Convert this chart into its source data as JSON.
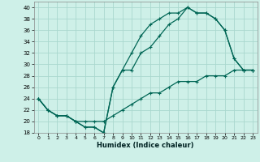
{
  "xlabel": "Humidex (Indice chaleur)",
  "bg_color": "#cef0e8",
  "grid_color": "#aad8ce",
  "line_color": "#006655",
  "xlim": [
    -0.5,
    23.5
  ],
  "ylim": [
    18,
    41
  ],
  "xticks": [
    0,
    1,
    2,
    3,
    4,
    5,
    6,
    7,
    8,
    9,
    10,
    11,
    12,
    13,
    14,
    15,
    16,
    17,
    18,
    19,
    20,
    21,
    22,
    23
  ],
  "yticks": [
    18,
    20,
    22,
    24,
    26,
    28,
    30,
    32,
    34,
    36,
    38,
    40
  ],
  "line1_x": [
    0,
    1,
    2,
    3,
    4,
    5,
    6,
    7,
    8,
    9,
    10,
    11,
    12,
    13,
    14,
    15,
    16,
    17,
    18,
    19,
    20,
    21,
    22,
    23
  ],
  "line1_y": [
    24,
    22,
    21,
    21,
    20,
    19,
    19,
    18,
    26,
    29,
    32,
    35,
    37,
    38,
    39,
    39,
    40,
    39,
    39,
    38,
    36,
    31,
    29,
    29
  ],
  "line2_x": [
    0,
    1,
    2,
    3,
    4,
    5,
    6,
    7,
    8,
    9,
    10,
    11,
    12,
    13,
    14,
    15,
    16,
    17,
    18,
    19,
    20,
    21,
    22,
    23
  ],
  "line2_y": [
    24,
    22,
    21,
    21,
    20,
    19,
    19,
    18,
    26,
    29,
    29,
    32,
    33,
    35,
    37,
    38,
    40,
    39,
    39,
    38,
    36,
    31,
    29,
    29
  ],
  "line3_x": [
    0,
    1,
    2,
    3,
    4,
    5,
    6,
    7,
    8,
    9,
    10,
    11,
    12,
    13,
    14,
    15,
    16,
    17,
    18,
    19,
    20,
    21,
    22,
    23
  ],
  "line3_y": [
    24,
    22,
    21,
    21,
    20,
    20,
    20,
    20,
    21,
    22,
    23,
    24,
    25,
    25,
    26,
    27,
    27,
    27,
    28,
    28,
    28,
    29,
    29,
    29
  ]
}
